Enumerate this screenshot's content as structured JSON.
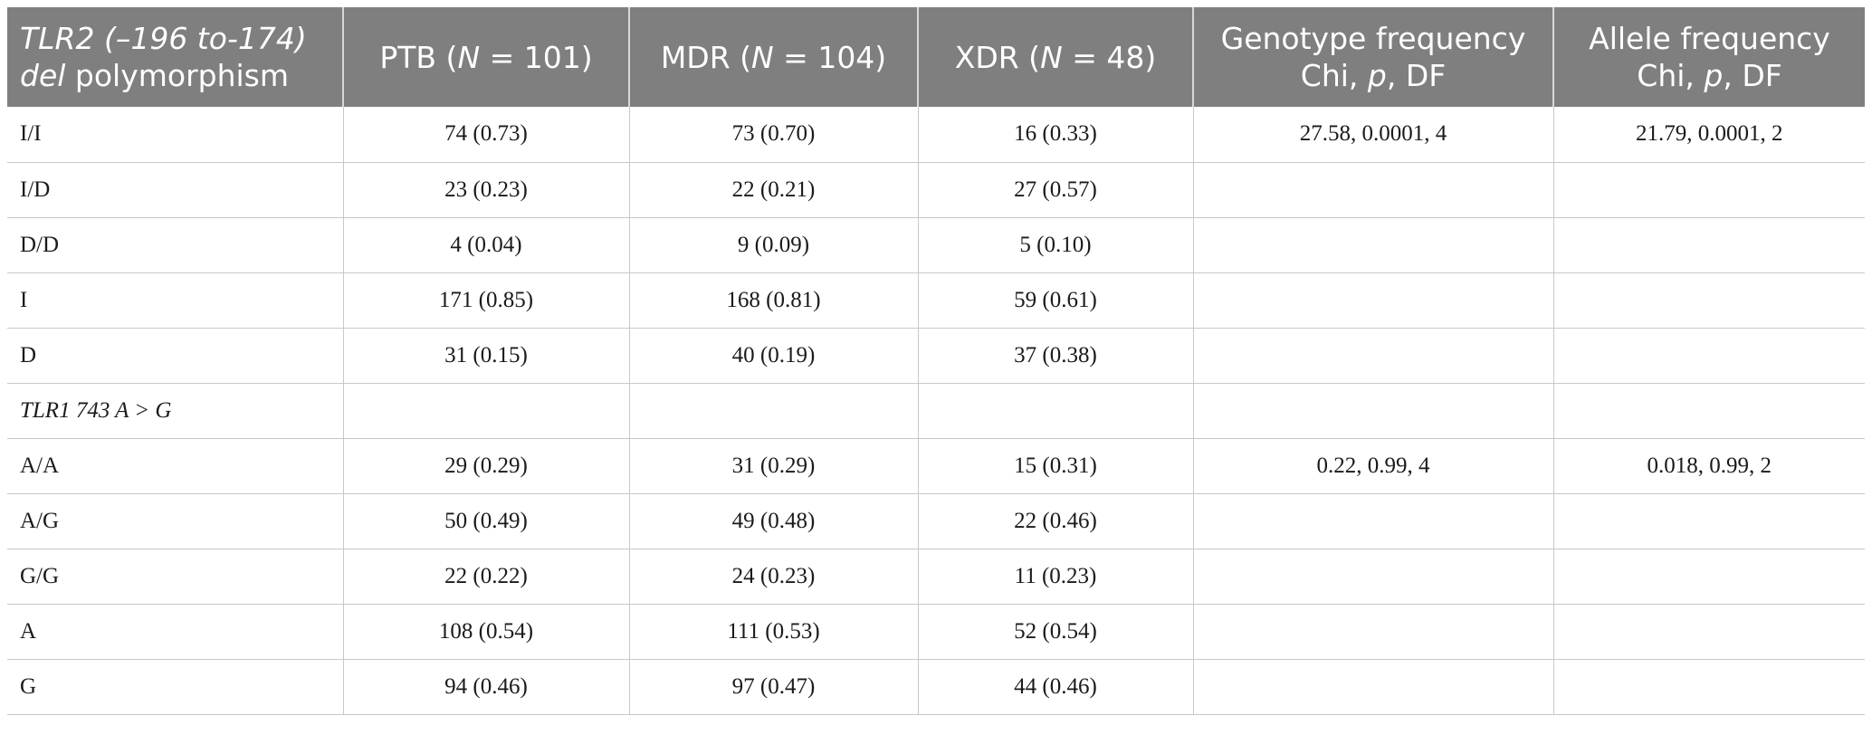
{
  "table": {
    "headers": {
      "col0": {
        "gene": "TLR2 (–196 to-174)",
        "del": "del",
        "rest": " polymorphism"
      },
      "col1": {
        "pre": "PTB (",
        "n": "N",
        "post": " = 101)"
      },
      "col2": {
        "pre": "MDR (",
        "n": "N",
        "post": " = 104)"
      },
      "col3": {
        "pre": "XDR (",
        "n": "N",
        "post": " = 48)"
      },
      "col4": {
        "line1": "Genotype frequency",
        "pre": "Chi, ",
        "p": "p",
        "post": ", DF"
      },
      "col5": {
        "line1": "Allele frequency",
        "pre": "Chi, ",
        "p": "p",
        "post": ", DF"
      }
    },
    "rows": [
      {
        "label": "I/I",
        "ptb": "74 (0.73)",
        "mdr": "73 (0.70)",
        "xdr": "16 (0.33)",
        "genotype": "27.58, 0.0001, 4",
        "allele": "21.79, 0.0001, 2"
      },
      {
        "label": "I/D",
        "ptb": "23 (0.23)",
        "mdr": "22 (0.21)",
        "xdr": "27 (0.57)",
        "genotype": "",
        "allele": ""
      },
      {
        "label": "D/D",
        "ptb": "4 (0.04)",
        "mdr": "9 (0.09)",
        "xdr": "5 (0.10)",
        "genotype": "",
        "allele": ""
      },
      {
        "label": "I",
        "ptb": "171 (0.85)",
        "mdr": "168 (0.81)",
        "xdr": "59 (0.61)",
        "genotype": "",
        "allele": ""
      },
      {
        "label": "D",
        "ptb": "31 (0.15)",
        "mdr": "40 (0.19)",
        "xdr": "37 (0.38)",
        "genotype": "",
        "allele": ""
      },
      {
        "label": "TLR1 743 A > G",
        "ptb": "",
        "mdr": "",
        "xdr": "",
        "genotype": "",
        "allele": "",
        "italic": true
      },
      {
        "label": "A/A",
        "ptb": "29 (0.29)",
        "mdr": "31 (0.29)",
        "xdr": "15 (0.31)",
        "genotype": "0.22, 0.99, 4",
        "allele": "0.018, 0.99, 2"
      },
      {
        "label": "A/G",
        "ptb": "50 (0.49)",
        "mdr": "49 (0.48)",
        "xdr": "22 (0.46)",
        "genotype": "",
        "allele": ""
      },
      {
        "label": "G/G",
        "ptb": "22 (0.22)",
        "mdr": "24 (0.23)",
        "xdr": "11 (0.23)",
        "genotype": "",
        "allele": ""
      },
      {
        "label": "A",
        "ptb": "108 (0.54)",
        "mdr": "111 (0.53)",
        "xdr": "52 (0.54)",
        "genotype": "",
        "allele": ""
      },
      {
        "label": "G",
        "ptb": "94 (0.46)",
        "mdr": "97 (0.47)",
        "xdr": "44 (0.46)",
        "genotype": "",
        "allele": ""
      }
    ]
  }
}
